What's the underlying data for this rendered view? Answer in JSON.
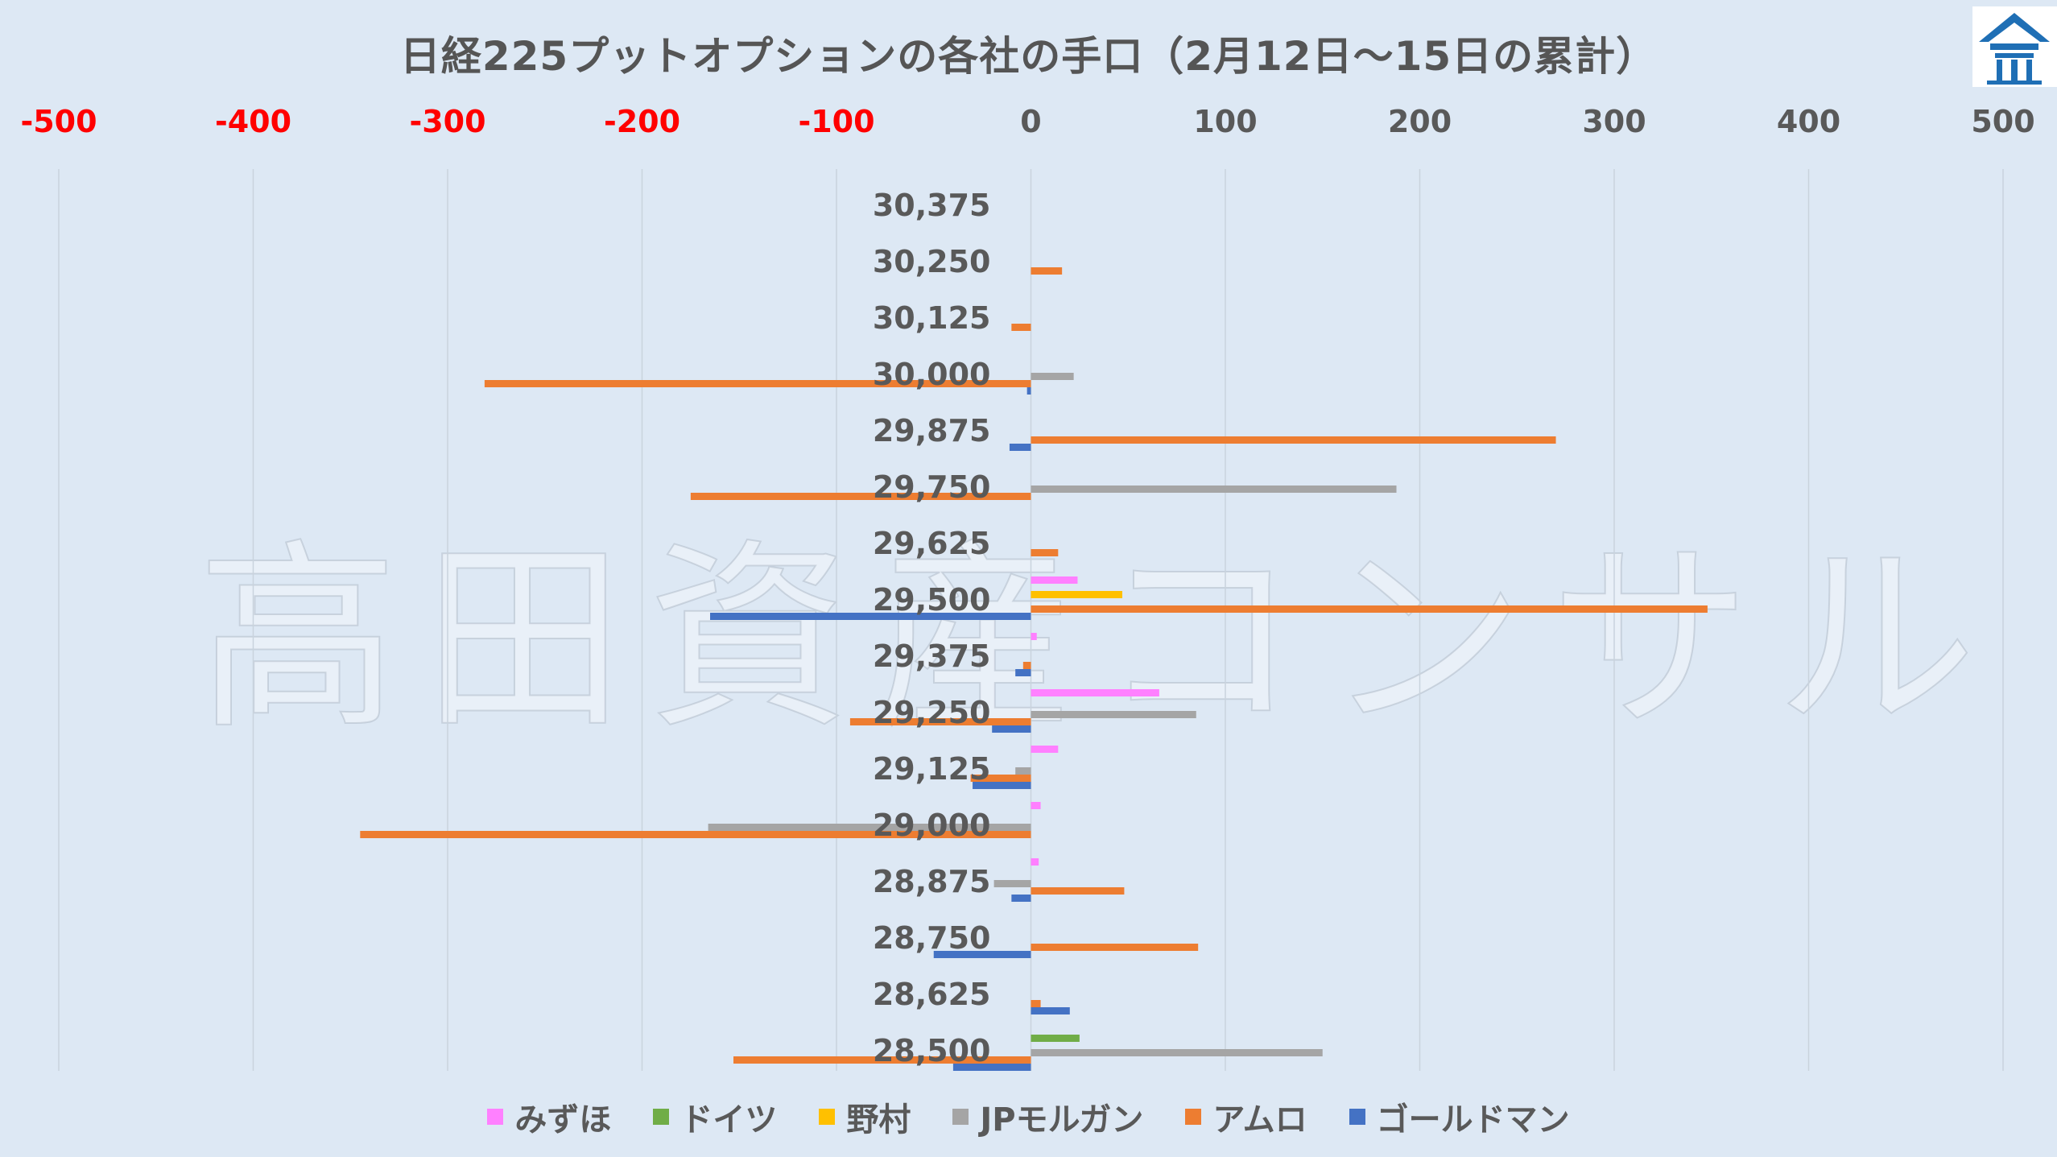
{
  "chart_data": {
    "type": "bar",
    "orientation": "horizontal",
    "title": "日経225プットオプションの各社の手口（2月12日～15日の累計）",
    "watermark": "高田資産コンサル",
    "xlim": [
      -500,
      500
    ],
    "x_ticks": [
      "-500",
      "-400",
      "-300",
      "-200",
      "-100",
      "0",
      "100",
      "200",
      "300",
      "400",
      "500"
    ],
    "x_axis_position": "top",
    "negative_tick_color": "#ff0000",
    "grid": "vertical",
    "legend_position": "bottom",
    "categories": [
      "30,375",
      "30,250",
      "30,125",
      "30,000",
      "29,875",
      "29,750",
      "29,625",
      "29,500",
      "29,375",
      "29,250",
      "29,125",
      "29,000",
      "28,875",
      "28,750",
      "28,625",
      "28,500"
    ],
    "series": [
      {
        "name": "みずほ",
        "color": "#ff80ff",
        "values": [
          0,
          0,
          0,
          0,
          0,
          0,
          0,
          24,
          3,
          66,
          14,
          5,
          4,
          0,
          0,
          0
        ]
      },
      {
        "name": "ドイツ",
        "color": "#70ad47",
        "values": [
          0,
          0,
          0,
          0,
          0,
          0,
          0,
          0,
          0,
          0,
          0,
          0,
          0,
          0,
          0,
          25
        ]
      },
      {
        "name": "野村",
        "color": "#ffc000",
        "values": [
          0,
          0,
          0,
          0,
          0,
          0,
          0,
          47,
          0,
          0,
          0,
          0,
          0,
          0,
          0,
          0
        ]
      },
      {
        "name": "JPモルガン",
        "color": "#a5a5a5",
        "values": [
          0,
          0,
          0,
          22,
          0,
          188,
          0,
          0,
          0,
          85,
          -8,
          -166,
          -19,
          0,
          0,
          150
        ]
      },
      {
        "name": "アムロ",
        "color": "#ed7d31",
        "values": [
          0,
          16,
          -10,
          -281,
          270,
          -175,
          14,
          348,
          -4,
          -93,
          -31,
          -345,
          48,
          86,
          5,
          -153
        ]
      },
      {
        "name": "ゴールドマン",
        "color": "#4472c4",
        "values": [
          0,
          0,
          0,
          -2,
          -11,
          0,
          0,
          -165,
          -8,
          -20,
          -30,
          0,
          -10,
          -50,
          20,
          -40
        ]
      }
    ]
  },
  "logo": {
    "colors": {
      "primary": "#1f6fb5"
    }
  }
}
